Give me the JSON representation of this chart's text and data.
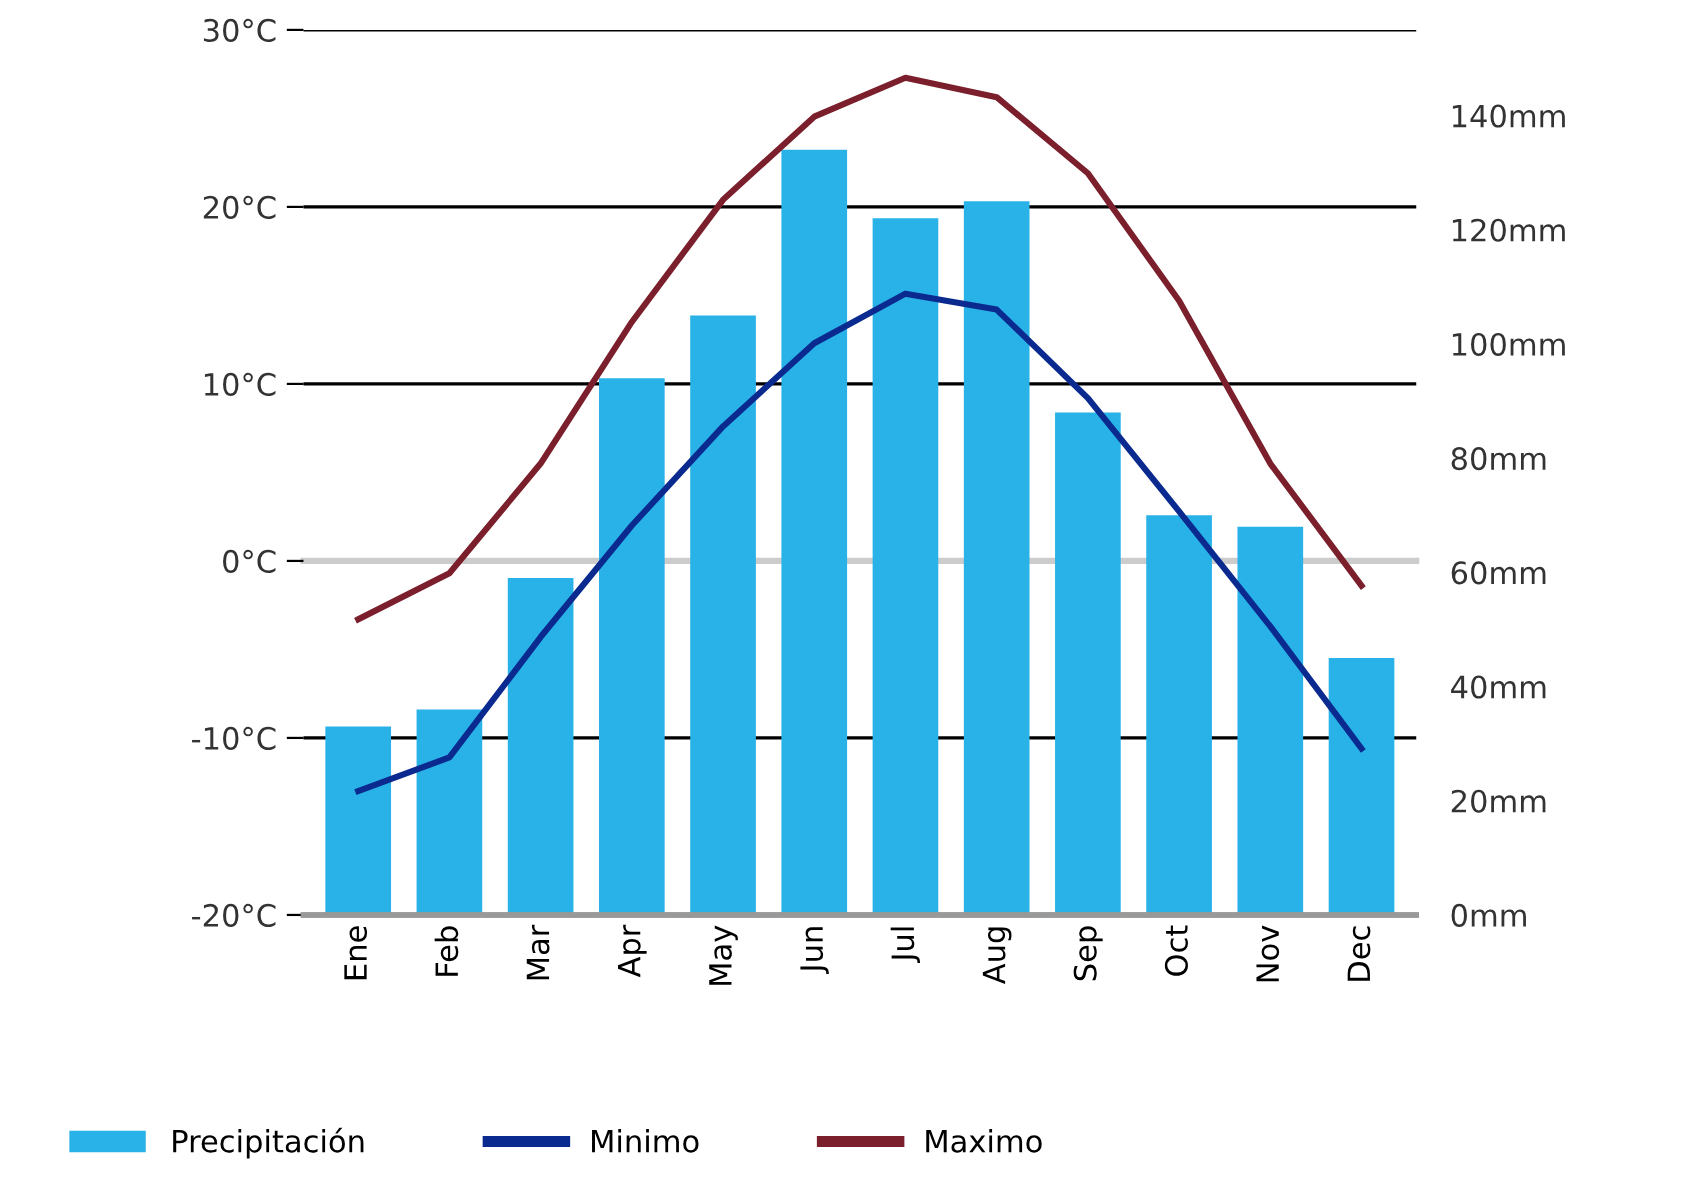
{
  "chart_data": {
    "type": "bar",
    "categories": [
      "Ene",
      "Feb",
      "Mar",
      "Apr",
      "May",
      "Jun",
      "Jul",
      "Aug",
      "Sep",
      "Oct",
      "Nov",
      "Dec"
    ],
    "series": [
      {
        "name": "Precipitación",
        "axis": "y2",
        "color": "#29b2e8",
        "values": [
          33,
          36,
          59,
          94,
          105,
          134,
          122,
          125,
          88,
          70,
          68,
          45
        ]
      },
      {
        "name": "Minimo",
        "type": "line",
        "color": "#0a2a8f",
        "values": [
          -13,
          -11.1,
          -4.3,
          2,
          7.6,
          12.3,
          15.1,
          14.2,
          9.2,
          2.8,
          -3.7,
          -10.6
        ]
      },
      {
        "name": "Maximo",
        "type": "line",
        "color": "#7a1f2b",
        "values": [
          -3.3,
          -0.7,
          5.5,
          13.5,
          20.4,
          25.1,
          27.3,
          26.2,
          21.9,
          14.7,
          5.5,
          -1.4
        ]
      }
    ],
    "ylim": [
      -20,
      30
    ],
    "yticks": [
      {
        "value": -20,
        "label": "-20°C"
      },
      {
        "value": -10,
        "label": "-10°C"
      },
      {
        "value": 0,
        "label": "0°C"
      },
      {
        "value": 10,
        "label": "10°C"
      },
      {
        "value": 20,
        "label": "20°C"
      },
      {
        "value": 30,
        "label": "30°C"
      }
    ],
    "y2lim": [
      0,
      155
    ],
    "y2ticks": [
      {
        "value": 0,
        "label": "0mm"
      },
      {
        "value": 20,
        "label": "20mm"
      },
      {
        "value": 40,
        "label": "40mm"
      },
      {
        "value": 60,
        "label": "60mm"
      },
      {
        "value": 80,
        "label": "80mm"
      },
      {
        "value": 100,
        "label": "100mm"
      },
      {
        "value": 120,
        "label": "120mm"
      },
      {
        "value": 140,
        "label": "140mm"
      }
    ],
    "ref_lines": [
      {
        "axis": "y",
        "value": 0,
        "color": "#cccccc"
      }
    ],
    "grid": "y",
    "legend": "bottom",
    "marker": "none",
    "line_style": "solid"
  }
}
